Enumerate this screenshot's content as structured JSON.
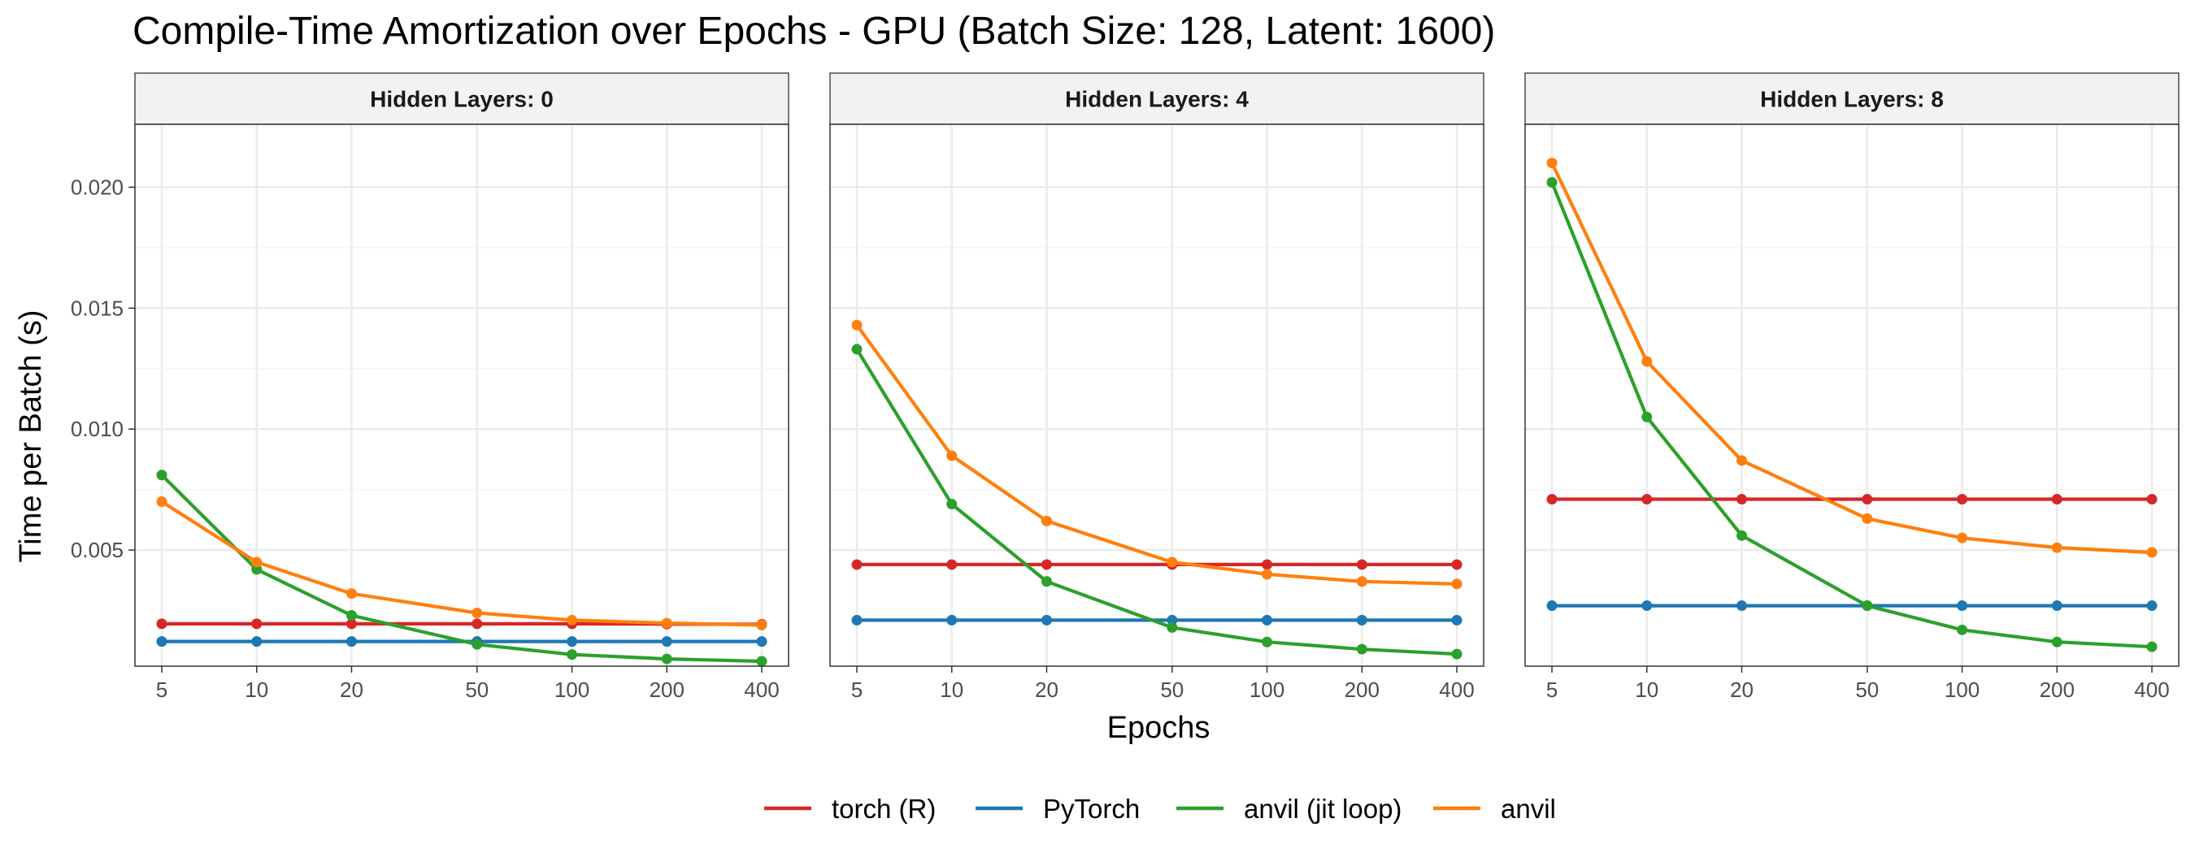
{
  "chart_data": {
    "type": "line",
    "title": "Compile-Time Amortization over Epochs - GPU (Batch Size: 128, Latent: 1600)",
    "xlabel": "Epochs",
    "ylabel": "Time per Batch (s)",
    "x_scale": "log",
    "x": [
      5,
      10,
      20,
      50,
      100,
      200,
      400
    ],
    "x_tick_labels": [
      "5",
      "10",
      "20",
      "50",
      "100",
      "200",
      "400"
    ],
    "ylim": [
      0.0002,
      0.0226
    ],
    "y_ticks": [
      0.005,
      0.01,
      0.015,
      0.02
    ],
    "y_tick_labels": [
      "0.005",
      "0.010",
      "0.015",
      "0.020"
    ],
    "grid": true,
    "legend": {
      "position": "bottom",
      "entries": [
        "torch (R)",
        "PyTorch",
        "anvil (jit loop)",
        "anvil"
      ]
    },
    "series_colors": {
      "torch (R)": "#D62728",
      "PyTorch": "#1F77B4",
      "anvil (jit loop)": "#2CA02C",
      "anvil": "#FF7F0E"
    },
    "panels": [
      {
        "label": "Hidden Layers: 0",
        "series": [
          {
            "name": "torch (R)",
            "values": [
              0.00195,
              0.00195,
              0.00195,
              0.00195,
              0.00195,
              0.00194,
              0.00193
            ]
          },
          {
            "name": "PyTorch",
            "values": [
              0.00122,
              0.00122,
              0.00122,
              0.00122,
              0.00122,
              0.00122,
              0.00122
            ]
          },
          {
            "name": "anvil (jit loop)",
            "values": [
              0.0081,
              0.0042,
              0.0023,
              0.0011,
              0.00068,
              0.0005,
              0.0004
            ]
          },
          {
            "name": "anvil",
            "values": [
              0.007,
              0.0045,
              0.0032,
              0.0024,
              0.0021,
              0.00198,
              0.0019
            ]
          }
        ]
      },
      {
        "label": "Hidden Layers: 4",
        "series": [
          {
            "name": "torch (R)",
            "values": [
              0.0044,
              0.0044,
              0.0044,
              0.0044,
              0.0044,
              0.0044,
              0.0044
            ]
          },
          {
            "name": "PyTorch",
            "values": [
              0.0021,
              0.0021,
              0.0021,
              0.0021,
              0.0021,
              0.0021,
              0.0021
            ]
          },
          {
            "name": "anvil (jit loop)",
            "values": [
              0.0133,
              0.0069,
              0.0037,
              0.0018,
              0.0012,
              0.0009,
              0.0007
            ]
          },
          {
            "name": "anvil",
            "values": [
              0.0143,
              0.0089,
              0.0062,
              0.0045,
              0.004,
              0.0037,
              0.0036
            ]
          }
        ]
      },
      {
        "label": "Hidden Layers: 8",
        "series": [
          {
            "name": "torch (R)",
            "values": [
              0.0071,
              0.0071,
              0.0071,
              0.0071,
              0.0071,
              0.0071,
              0.0071
            ]
          },
          {
            "name": "PyTorch",
            "values": [
              0.0027,
              0.0027,
              0.0027,
              0.0027,
              0.0027,
              0.0027,
              0.0027
            ]
          },
          {
            "name": "anvil (jit loop)",
            "values": [
              0.0202,
              0.0105,
              0.0056,
              0.0027,
              0.0017,
              0.0012,
              0.001
            ]
          },
          {
            "name": "anvil",
            "values": [
              0.021,
              0.0128,
              0.0087,
              0.0063,
              0.0055,
              0.0051,
              0.0049
            ]
          }
        ]
      }
    ]
  }
}
